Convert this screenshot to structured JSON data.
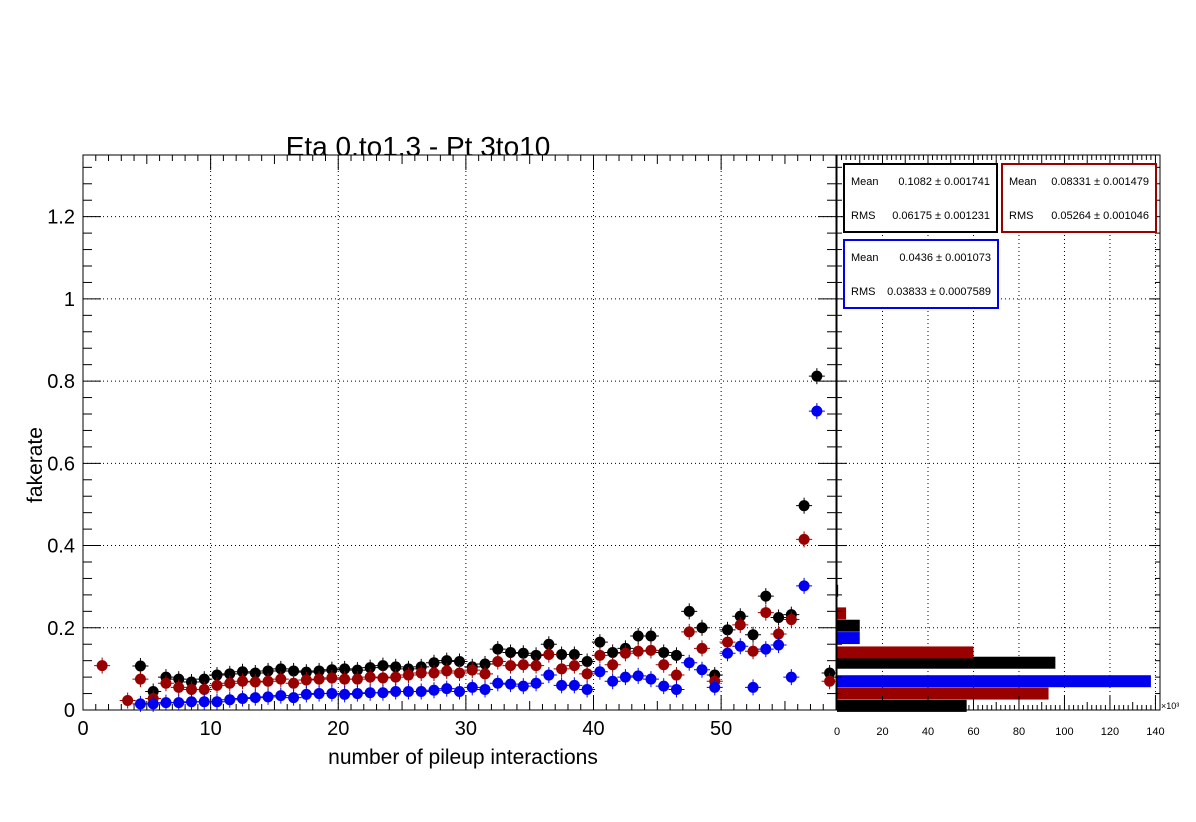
{
  "chart_data": {
    "type": "scatter",
    "title": "Eta 0.to1.3 - Pt 3to10",
    "xlabel": "number of pileup interactions",
    "ylabel": "fakerate",
    "xlim": [
      0,
      59
    ],
    "ylim": [
      0,
      1.35
    ],
    "x_ticks": [
      "0",
      "10",
      "20",
      "30",
      "40",
      "50"
    ],
    "y_ticks": [
      "0",
      "0.2",
      "0.4",
      "0.6",
      "0.8",
      "1",
      "1.2"
    ],
    "grid": true,
    "series": [
      {
        "color": "#000000",
        "points": [
          [
            4.5,
            0.107
          ],
          [
            5.5,
            0.045
          ],
          [
            6.5,
            0.08
          ],
          [
            7.5,
            0.075
          ],
          [
            8.5,
            0.068
          ],
          [
            9.5,
            0.075
          ],
          [
            10.5,
            0.085
          ],
          [
            11.5,
            0.088
          ],
          [
            12.5,
            0.093
          ],
          [
            13.5,
            0.09
          ],
          [
            14.5,
            0.095
          ],
          [
            15.5,
            0.1
          ],
          [
            16.5,
            0.095
          ],
          [
            17.5,
            0.092
          ],
          [
            18.5,
            0.095
          ],
          [
            19.5,
            0.098
          ],
          [
            20.5,
            0.1
          ],
          [
            21.5,
            0.097
          ],
          [
            22.5,
            0.103
          ],
          [
            23.5,
            0.108
          ],
          [
            24.5,
            0.105
          ],
          [
            25.5,
            0.1
          ],
          [
            26.5,
            0.105
          ],
          [
            27.5,
            0.115
          ],
          [
            28.5,
            0.12
          ],
          [
            29.5,
            0.118
          ],
          [
            30.5,
            0.105
          ],
          [
            31.5,
            0.112
          ],
          [
            32.5,
            0.148
          ],
          [
            33.5,
            0.14
          ],
          [
            34.5,
            0.138
          ],
          [
            35.5,
            0.133
          ],
          [
            36.5,
            0.16
          ],
          [
            37.5,
            0.135
          ],
          [
            38.5,
            0.135
          ],
          [
            39.5,
            0.118
          ],
          [
            40.5,
            0.165
          ],
          [
            41.5,
            0.14
          ],
          [
            42.5,
            0.15
          ],
          [
            43.5,
            0.18
          ],
          [
            44.5,
            0.18
          ],
          [
            45.5,
            0.14
          ],
          [
            46.5,
            0.133
          ],
          [
            47.5,
            0.24
          ],
          [
            48.5,
            0.2
          ],
          [
            49.5,
            0.085
          ],
          [
            50.5,
            0.195
          ],
          [
            51.5,
            0.228
          ],
          [
            52.5,
            0.183
          ],
          [
            53.5,
            0.277
          ],
          [
            54.5,
            0.225
          ],
          [
            55.5,
            0.232
          ],
          [
            56.5,
            0.497
          ],
          [
            57.5,
            0.812
          ],
          [
            58.5,
            0.09
          ]
        ]
      },
      {
        "color": "#990000",
        "points": [
          [
            1.5,
            0.108
          ],
          [
            3.5,
            0.023
          ],
          [
            4.5,
            0.075
          ],
          [
            5.5,
            0.028
          ],
          [
            6.5,
            0.065
          ],
          [
            7.5,
            0.055
          ],
          [
            8.5,
            0.05
          ],
          [
            9.5,
            0.05
          ],
          [
            10.5,
            0.06
          ],
          [
            11.5,
            0.065
          ],
          [
            12.5,
            0.07
          ],
          [
            13.5,
            0.068
          ],
          [
            14.5,
            0.07
          ],
          [
            15.5,
            0.075
          ],
          [
            16.5,
            0.065
          ],
          [
            17.5,
            0.073
          ],
          [
            18.5,
            0.075
          ],
          [
            19.5,
            0.078
          ],
          [
            20.5,
            0.075
          ],
          [
            21.5,
            0.075
          ],
          [
            22.5,
            0.08
          ],
          [
            23.5,
            0.078
          ],
          [
            24.5,
            0.08
          ],
          [
            25.5,
            0.085
          ],
          [
            26.5,
            0.09
          ],
          [
            27.5,
            0.09
          ],
          [
            28.5,
            0.095
          ],
          [
            29.5,
            0.09
          ],
          [
            30.5,
            0.097
          ],
          [
            31.5,
            0.088
          ],
          [
            32.5,
            0.118
          ],
          [
            33.5,
            0.108
          ],
          [
            34.5,
            0.11
          ],
          [
            35.5,
            0.108
          ],
          [
            36.5,
            0.135
          ],
          [
            37.5,
            0.1
          ],
          [
            38.5,
            0.108
          ],
          [
            39.5,
            0.088
          ],
          [
            40.5,
            0.133
          ],
          [
            41.5,
            0.11
          ],
          [
            42.5,
            0.138
          ],
          [
            43.5,
            0.143
          ],
          [
            44.5,
            0.145
          ],
          [
            45.5,
            0.11
          ],
          [
            46.5,
            0.085
          ],
          [
            47.5,
            0.19
          ],
          [
            48.5,
            0.15
          ],
          [
            49.5,
            0.07
          ],
          [
            50.5,
            0.165
          ],
          [
            51.5,
            0.207
          ],
          [
            52.5,
            0.143
          ],
          [
            53.5,
            0.237
          ],
          [
            54.5,
            0.185
          ],
          [
            55.5,
            0.22
          ],
          [
            56.5,
            0.415
          ],
          [
            58.5,
            0.07
          ]
        ]
      },
      {
        "color": "#0000ee",
        "points": [
          [
            4.5,
            0.015
          ],
          [
            5.5,
            0.015
          ],
          [
            6.5,
            0.018
          ],
          [
            7.5,
            0.018
          ],
          [
            8.5,
            0.02
          ],
          [
            9.5,
            0.02
          ],
          [
            10.5,
            0.02
          ],
          [
            11.5,
            0.025
          ],
          [
            12.5,
            0.028
          ],
          [
            13.5,
            0.03
          ],
          [
            14.5,
            0.032
          ],
          [
            15.5,
            0.035
          ],
          [
            16.5,
            0.03
          ],
          [
            17.5,
            0.038
          ],
          [
            18.5,
            0.04
          ],
          [
            19.5,
            0.04
          ],
          [
            20.5,
            0.038
          ],
          [
            21.5,
            0.04
          ],
          [
            22.5,
            0.042
          ],
          [
            23.5,
            0.042
          ],
          [
            24.5,
            0.045
          ],
          [
            25.5,
            0.045
          ],
          [
            26.5,
            0.045
          ],
          [
            27.5,
            0.048
          ],
          [
            28.5,
            0.052
          ],
          [
            29.5,
            0.045
          ],
          [
            30.5,
            0.055
          ],
          [
            31.5,
            0.05
          ],
          [
            32.5,
            0.065
          ],
          [
            33.5,
            0.063
          ],
          [
            34.5,
            0.058
          ],
          [
            35.5,
            0.065
          ],
          [
            36.5,
            0.085
          ],
          [
            37.5,
            0.06
          ],
          [
            38.5,
            0.06
          ],
          [
            39.5,
            0.05
          ],
          [
            40.5,
            0.093
          ],
          [
            41.5,
            0.07
          ],
          [
            42.5,
            0.08
          ],
          [
            43.5,
            0.083
          ],
          [
            44.5,
            0.075
          ],
          [
            45.5,
            0.058
          ],
          [
            46.5,
            0.05
          ],
          [
            47.5,
            0.115
          ],
          [
            48.5,
            0.098
          ],
          [
            49.5,
            0.055
          ],
          [
            50.5,
            0.138
          ],
          [
            51.5,
            0.155
          ],
          [
            52.5,
            0.055
          ],
          [
            53.5,
            0.148
          ],
          [
            54.5,
            0.158
          ],
          [
            55.5,
            0.08
          ],
          [
            56.5,
            0.302
          ],
          [
            57.5,
            0.727
          ]
        ]
      }
    ],
    "side_histogram": {
      "orientation": "horizontal",
      "x_ticks": [
        "0",
        "20",
        "40",
        "60",
        "80",
        "100",
        "120",
        "140"
      ],
      "x_exponent": "×10³",
      "xlim": [
        0,
        142
      ],
      "bars": [
        {
          "color": "#000000",
          "y": 0.01,
          "value": 57
        },
        {
          "color": "#990000",
          "y": 0.04,
          "value": 93
        },
        {
          "color": "#0000ee",
          "y": 0.07,
          "value": 138
        },
        {
          "color": "#000000",
          "y": 0.115,
          "value": 96
        },
        {
          "color": "#990000",
          "y": 0.14,
          "value": 60
        },
        {
          "color": "#0000ee",
          "y": 0.175,
          "value": 10
        },
        {
          "color": "#000000",
          "y": 0.205,
          "value": 10
        },
        {
          "color": "#990000",
          "y": 0.235,
          "value": 4
        },
        {
          "color": "#000000",
          "y": 0.29,
          "value": 0.5
        }
      ]
    },
    "stat_boxes": [
      {
        "color": "#000000",
        "mean_label": "Mean",
        "mean_value": "0.1082 ± 0.001741",
        "rms_label": "RMS",
        "rms_value": "0.06175 ± 0.001231"
      },
      {
        "color": "#990000",
        "mean_label": "Mean",
        "mean_value": "0.08331 ± 0.001479",
        "rms_label": "RMS",
        "rms_value": "0.05264 ± 0.001046"
      },
      {
        "color": "#0000ee",
        "mean_label": "Mean",
        "mean_value": "0.0436 ± 0.001073",
        "rms_label": "RMS",
        "rms_value": "0.03833 ± 0.0007589"
      }
    ]
  }
}
